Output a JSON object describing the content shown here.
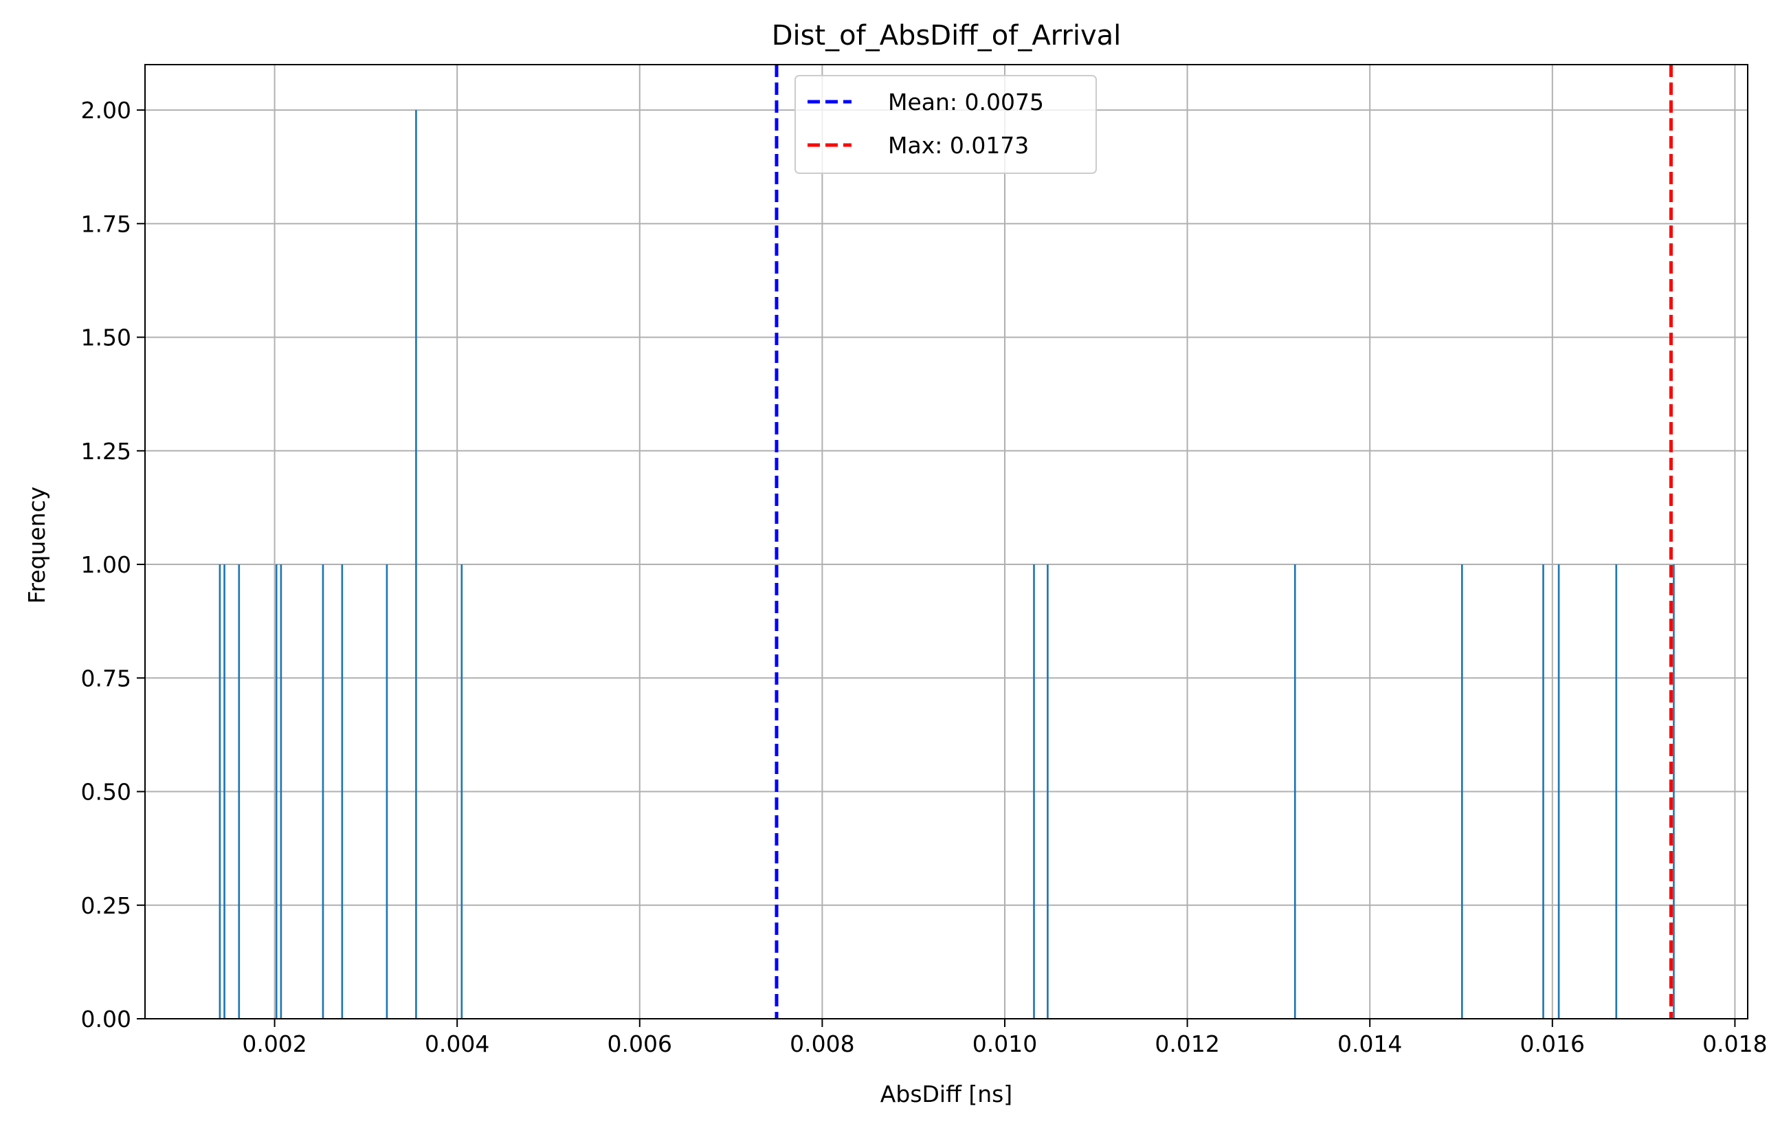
{
  "chart_data": {
    "type": "bar",
    "title": "Dist_of_AbsDiff_of_Arrival",
    "xlabel": "AbsDiff [ns]",
    "ylabel": "Frequency",
    "xlim": [
      0.00058,
      0.01814
    ],
    "ylim": [
      0,
      2.1
    ],
    "grid": true,
    "xticks": [
      "0.002",
      "0.004",
      "0.006",
      "0.008",
      "0.010",
      "0.012",
      "0.014",
      "0.016",
      "0.018"
    ],
    "yticks": [
      "0.00",
      "0.25",
      "0.50",
      "0.75",
      "1.00",
      "1.25",
      "1.50",
      "1.75",
      "2.00"
    ],
    "bar_color": "#1f77b4",
    "bin_width": 2e-05,
    "bars": [
      {
        "x": 0.00139,
        "value": 1
      },
      {
        "x": 0.00144,
        "value": 1
      },
      {
        "x": 0.0016,
        "value": 1
      },
      {
        "x": 0.00201,
        "value": 1
      },
      {
        "x": 0.00206,
        "value": 1
      },
      {
        "x": 0.00252,
        "value": 1
      },
      {
        "x": 0.00273,
        "value": 1
      },
      {
        "x": 0.00322,
        "value": 1
      },
      {
        "x": 0.00354,
        "value": 2
      },
      {
        "x": 0.00404,
        "value": 1
      },
      {
        "x": 0.01031,
        "value": 1
      },
      {
        "x": 0.01046,
        "value": 1
      },
      {
        "x": 0.01317,
        "value": 1
      },
      {
        "x": 0.015,
        "value": 1
      },
      {
        "x": 0.01589,
        "value": 1
      },
      {
        "x": 0.01606,
        "value": 1
      },
      {
        "x": 0.01669,
        "value": 1
      },
      {
        "x": 0.01732,
        "value": 1
      }
    ],
    "reference_lines": [
      {
        "name": "Mean",
        "value": 0.0075,
        "color": "#0000ff",
        "label": "Mean: 0.0075"
      },
      {
        "name": "Max",
        "value": 0.0173,
        "color": "#ff0000",
        "label": "Max: 0.0173"
      }
    ],
    "legend_position": "top-center"
  }
}
